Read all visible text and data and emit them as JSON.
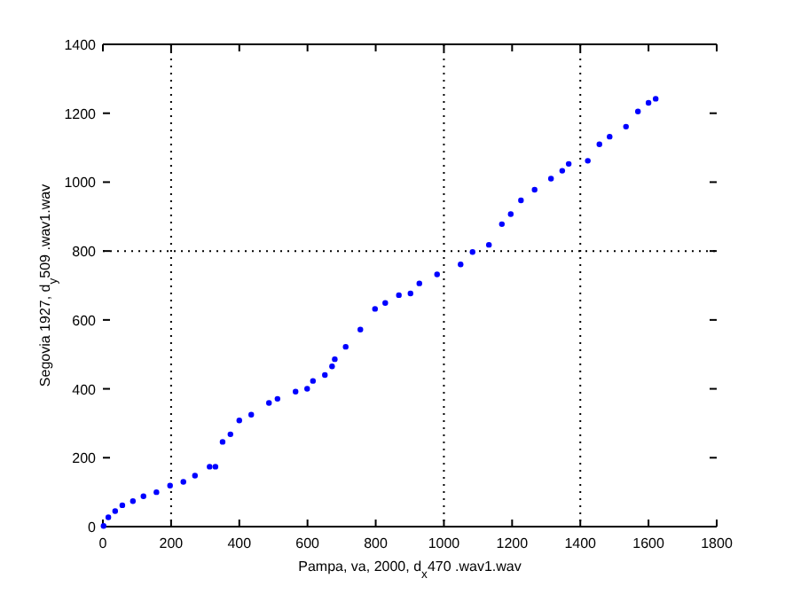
{
  "chart_data": {
    "type": "scatter",
    "xlabel": "Pampa, va, 2000, d$_{x}$470 .wav1.wav",
    "ylabel": "Segovia 1927, d$_{y}$509 .wav1.wav",
    "xlim": [
      0,
      1800
    ],
    "ylim": [
      0,
      1400
    ],
    "xticks": [
      0,
      200,
      400,
      600,
      800,
      1000,
      1200,
      1400,
      1600,
      1800
    ],
    "yticks": [
      0,
      200,
      400,
      600,
      800,
      1000,
      1200,
      1400
    ],
    "marker": "circle",
    "grid": false,
    "ref_lines": [
      {
        "axis": "x",
        "value": 200,
        "line_style": "dotted",
        "color": "#000000"
      },
      {
        "axis": "x",
        "value": 1000,
        "line_style": "dotted",
        "color": "#000000"
      },
      {
        "axis": "x",
        "value": 1400,
        "line_style": "dotted",
        "color": "#000000"
      },
      {
        "axis": "y",
        "value": 800,
        "line_style": "dotted",
        "color": "#000000"
      }
    ],
    "series": [
      {
        "color": "#0000ff",
        "x": [
          2,
          16,
          36,
          57,
          88,
          119,
          157,
          197,
          236,
          270,
          313,
          330,
          351,
          374,
          400,
          435,
          487,
          512,
          565,
          599,
          616,
          651,
          672,
          680,
          712,
          755,
          798,
          828,
          868,
          902,
          928,
          980,
          1049,
          1084,
          1132,
          1170,
          1196,
          1226,
          1266,
          1314,
          1347,
          1366,
          1422,
          1456,
          1486,
          1534,
          1569,
          1600,
          1621
        ],
        "values": [
          2,
          27,
          45,
          62,
          74,
          88,
          100,
          119,
          130,
          148,
          174,
          174,
          246,
          268,
          308,
          325,
          359,
          371,
          392,
          400,
          423,
          440,
          465,
          486,
          522,
          572,
          632,
          649,
          672,
          677,
          706,
          732,
          761,
          797,
          818,
          878,
          907,
          947,
          978,
          1010,
          1033,
          1053,
          1062,
          1110,
          1132,
          1161,
          1205,
          1230,
          1242
        ]
      }
    ]
  }
}
